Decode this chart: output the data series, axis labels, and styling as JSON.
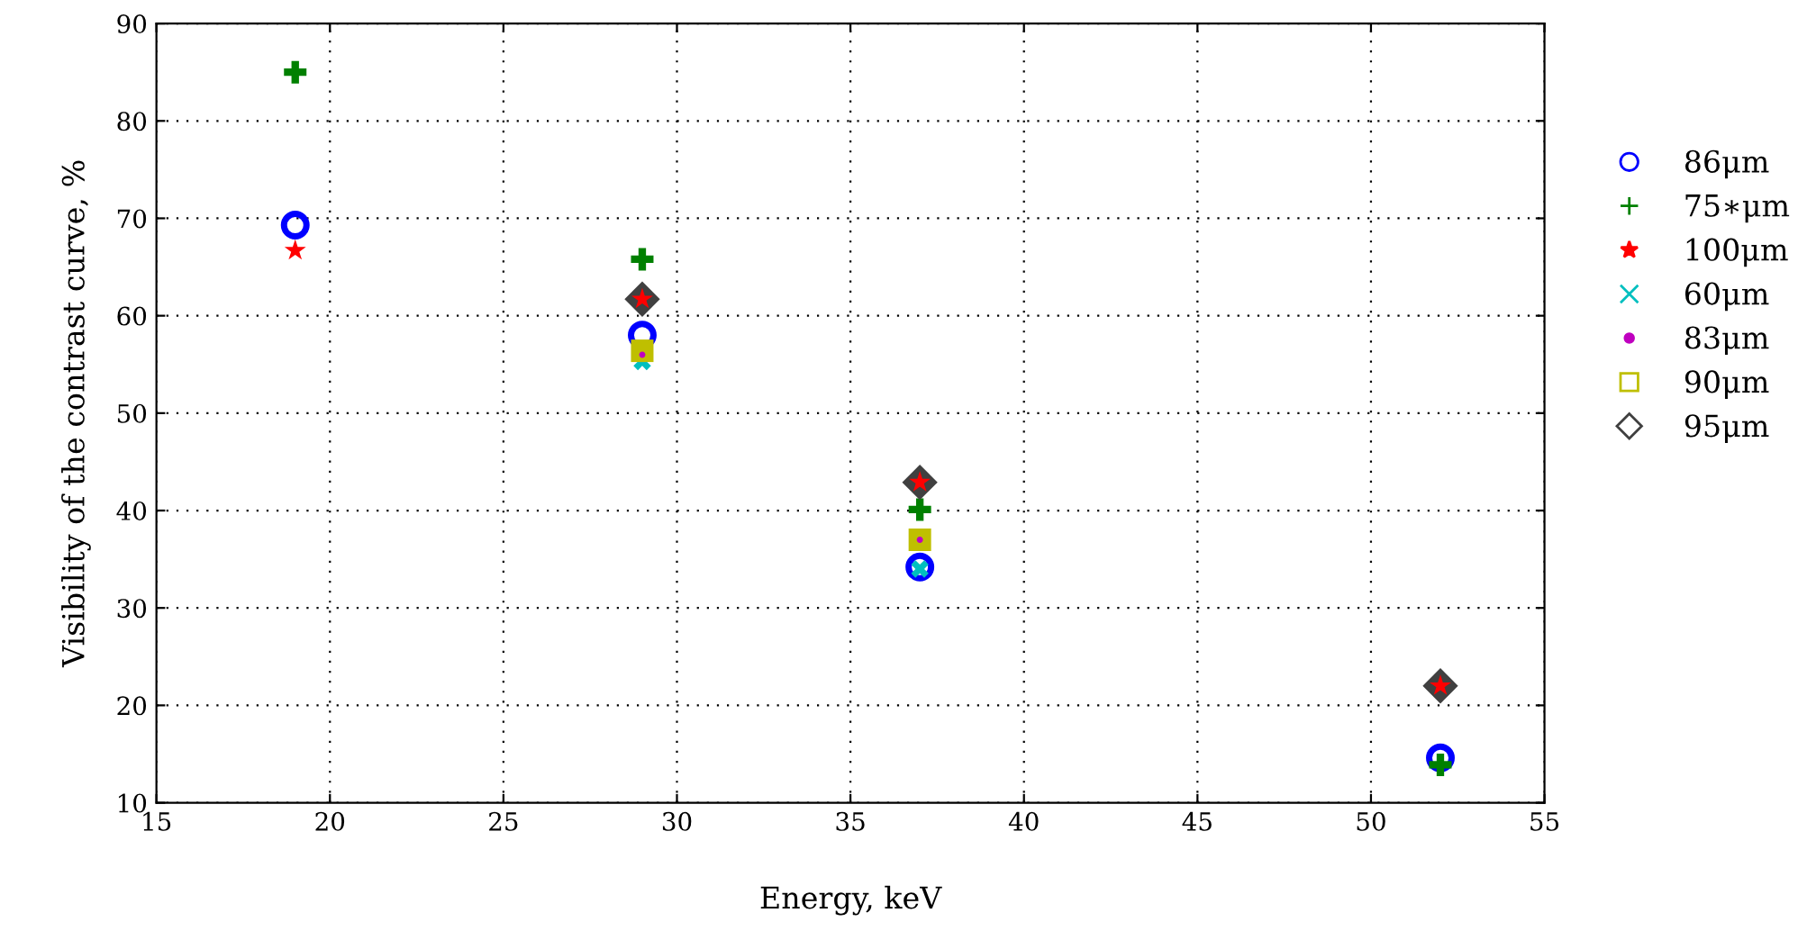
{
  "chart_data": {
    "type": "scatter",
    "xlabel": "Energy, keV",
    "ylabel": "Visibility of the contrast curve, %",
    "x": [
      19,
      29,
      37,
      52
    ],
    "series": [
      {
        "name": "86μm",
        "color": "#0000ff",
        "marker": "circle",
        "values": [
          69.3,
          58,
          34.2,
          14.6
        ]
      },
      {
        "name": "75∗μm",
        "color": "#008000",
        "marker": "plus",
        "values": [
          85,
          65.8,
          40.1,
          13.9
        ]
      },
      {
        "name": "100μm",
        "color": "#ff0000",
        "marker": "star",
        "values": [
          66.7,
          61.7,
          42.9,
          22
        ]
      },
      {
        "name": "60μm",
        "color": "#00bfbf",
        "marker": "x",
        "values": [
          null,
          55.3,
          34,
          null
        ]
      },
      {
        "name": "83μm",
        "color": "#bf00bf",
        "marker": "point",
        "values": [
          null,
          56,
          37,
          null
        ]
      },
      {
        "name": "90μm",
        "color": "#bfbf00",
        "marker": "square",
        "values": [
          null,
          56.4,
          37,
          null
        ]
      },
      {
        "name": "95μm",
        "color": "#404040",
        "marker": "diamond",
        "values": [
          null,
          61.7,
          42.9,
          22
        ]
      }
    ],
    "xlim": [
      15,
      55
    ],
    "xticks": [
      15,
      20,
      25,
      30,
      35,
      40,
      45,
      50,
      55
    ],
    "ylim": [
      10,
      90
    ],
    "yticks": [
      10,
      20,
      30,
      40,
      50,
      60,
      70,
      80,
      90
    ],
    "grid": true,
    "legend": "right"
  }
}
